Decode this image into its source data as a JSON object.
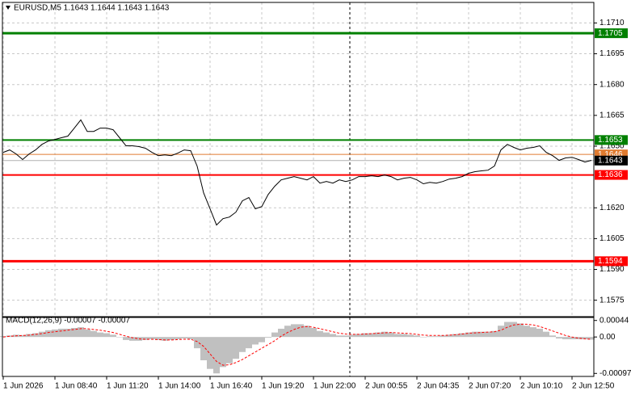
{
  "chart_data": [
    {
      "type": "line",
      "title": "EURUSD,M5  1.1643 1.1644 1.1643 1.1643",
      "categories": [
        "1 Jun 2026",
        null,
        null,
        null,
        null,
        null,
        null,
        null,
        "1 Jun 08:40",
        null,
        null,
        null,
        null,
        null,
        null,
        null,
        "1 Jun 11:20",
        null,
        null,
        null,
        null,
        null,
        null,
        null,
        "1 Jun 14:00",
        null,
        null,
        null,
        null,
        null,
        null,
        null,
        "1 Jun 16:40",
        null,
        null,
        null,
        null,
        null,
        null,
        null,
        "1 Jun 19:20",
        null,
        null,
        null,
        null,
        null,
        null,
        null,
        "1 Jun 22:00",
        null,
        null,
        null,
        null,
        null,
        null,
        null,
        "2 Jun 00:55",
        null,
        null,
        null,
        null,
        null,
        null,
        null,
        "2 Jun 04:35",
        null,
        null,
        null,
        null,
        null,
        null,
        null,
        "2 Jun 07:20",
        null,
        null,
        null,
        null,
        null,
        null,
        null,
        "2 Jun 10:10",
        null,
        null,
        null,
        null,
        null,
        null,
        null,
        "2 Jun 12:50",
        null,
        null,
        null
      ],
      "values": [
        1.1647,
        1.16482,
        1.16462,
        1.16435,
        1.16462,
        1.16482,
        1.16509,
        1.16525,
        1.16533,
        1.16541,
        1.16549,
        1.16588,
        1.16628,
        1.16572,
        1.16572,
        1.16588,
        1.16588,
        1.1658,
        1.16541,
        1.16502,
        1.16502,
        1.16498,
        1.1649,
        1.1647,
        1.16454,
        1.16458,
        1.16454,
        1.16466,
        1.16482,
        1.16478,
        1.16403,
        1.16273,
        1.16195,
        1.16116,
        1.16147,
        1.16155,
        1.16179,
        1.16234,
        1.1625,
        1.16195,
        1.16206,
        1.16265,
        1.16305,
        1.16336,
        1.16344,
        1.16352,
        1.16344,
        1.16336,
        1.16352,
        1.1632,
        1.16328,
        1.1632,
        1.16336,
        1.16328,
        1.16336,
        1.16352,
        1.16352,
        1.16356,
        1.16352,
        1.1636,
        1.16352,
        1.16336,
        1.16344,
        1.16348,
        1.16336,
        1.16317,
        1.16324,
        1.1632,
        1.16328,
        1.1634,
        1.16344,
        1.16352,
        1.16368,
        1.16376,
        1.1638,
        1.16383,
        1.16403,
        1.16482,
        1.16509,
        1.16494,
        1.16482,
        1.1649,
        1.16494,
        1.16502,
        1.1647,
        1.16454,
        1.16431,
        1.16443,
        1.16446,
        1.16435,
        1.16423,
        1.16431
      ],
      "color": "#000000",
      "ylim": [
        1.1567,
        1.172
      ],
      "yticks": [
        {
          "value": 1.171,
          "label": "1.1710"
        },
        1.1695,
        {
          "value": 1.168,
          "label": "1.1680"
        },
        1.1665,
        {
          "value": 1.165,
          "label": "1.1650"
        },
        {
          "value": 1.162,
          "label": "1.1620"
        },
        1.1605,
        {
          "value": 1.159,
          "label": "1.1590"
        },
        1.1575
      ],
      "grid": true,
      "levels": [
        {
          "value": 1.1705,
          "color": "#008000",
          "width": 3
        },
        {
          "value": 1.1653,
          "color": "#008000",
          "width": 2
        },
        {
          "value": 1.1646,
          "color": "#e07b30",
          "width": 1
        },
        {
          "value": 1.1643,
          "color": "#b0b0b0",
          "width": 1
        },
        {
          "value": 1.1636,
          "color": "#ff0000",
          "width": 2
        },
        {
          "value": 1.1594,
          "color": "#ff0000",
          "width": 3
        }
      ]
    },
    {
      "type": "macd",
      "title": "MACD(12,26,9) -0.00007 -0.00007",
      "ylim": [
        -0.00105,
        0.00052
      ],
      "yticks": [
        0.00044,
        {
          "value": 0,
          "label": "0.00"
        },
        -0.00097
      ],
      "series": [
        {
          "kind": "bar",
          "color": "#c0c0c0",
          "values": [
            2e-05,
            4e-05,
            6e-05,
            5e-05,
            8e-05,
            0.0001,
            0.00014,
            0.00018,
            0.0002,
            0.00022,
            0.00022,
            0.00024,
            0.00026,
            0.0002,
            0.00016,
            0.00012,
            0.0001,
            6e-05,
            0,
            -8e-05,
            -0.0001,
            -0.0001,
            -8e-05,
            -6e-05,
            -8e-05,
            -0.0001,
            -8e-05,
            -6e-05,
            -4e-05,
            -6e-05,
            -0.0003,
            -0.00062,
            -0.00085,
            -0.00097,
            -0.0008,
            -0.0007,
            -0.00058,
            -0.0004,
            -0.0003,
            -0.0002,
            -0.00014,
            -2e-05,
            0.00012,
            0.00022,
            0.0003,
            0.00034,
            0.00034,
            0.0003,
            0.00024,
            0.00016,
            0.00012,
            8e-05,
            4e-05,
            4e-05,
            6e-05,
            8e-05,
            0.0001,
            0.0001,
            0.00012,
            0.00014,
            0.00012,
            8e-05,
            8e-05,
            6e-05,
            4e-05,
            0,
            2e-05,
            2e-05,
            4e-05,
            6e-05,
            8e-05,
            0.0001,
            0.00012,
            0.00014,
            0.00014,
            0.00014,
            0.00016,
            0.0003,
            0.0004,
            0.0004,
            0.00036,
            0.0003,
            0.00026,
            0.00022,
            0.00014,
            4e-05,
            -4e-05,
            -6e-05,
            -6e-05,
            -6e-05,
            -6e-05,
            -7e-05
          ]
        },
        {
          "kind": "line",
          "color": "#ff0000",
          "values": [
            0,
            2e-05,
            3e-05,
            4e-05,
            5e-05,
            7e-05,
            9e-05,
            0.00012,
            0.00014,
            0.00016,
            0.00018,
            0.0002,
            0.00022,
            0.00022,
            0.0002,
            0.00018,
            0.00015,
            0.00012,
            7e-05,
            2e-05,
            -2e-05,
            -5e-05,
            -6e-05,
            -6e-05,
            -7e-05,
            -8e-05,
            -8e-05,
            -7e-05,
            -6e-05,
            -6e-05,
            -0.00012,
            -0.00025,
            -0.00045,
            -0.00065,
            -0.00075,
            -0.00074,
            -0.00068,
            -0.0006,
            -0.0005,
            -0.0004,
            -0.0003,
            -0.0002,
            -0.0001,
            2e-05,
            0.00012,
            0.0002,
            0.00026,
            0.00028,
            0.00026,
            0.00022,
            0.00018,
            0.00014,
            0.0001,
            8e-05,
            7e-05,
            7e-05,
            8e-05,
            9e-05,
            0.0001,
            0.00011,
            0.00012,
            0.00011,
            0.0001,
            9e-05,
            7e-05,
            5e-05,
            4e-05,
            4e-05,
            4e-05,
            5e-05,
            6e-05,
            8e-05,
            0.0001,
            0.00011,
            0.00012,
            0.00013,
            0.00014,
            0.00018,
            0.00026,
            0.00032,
            0.00034,
            0.00034,
            0.00032,
            0.00028,
            0.00022,
            0.00016,
            0.0001,
            4e-05,
            0,
            -3e-05,
            -5e-05,
            -6e-05
          ]
        }
      ]
    }
  ]
}
